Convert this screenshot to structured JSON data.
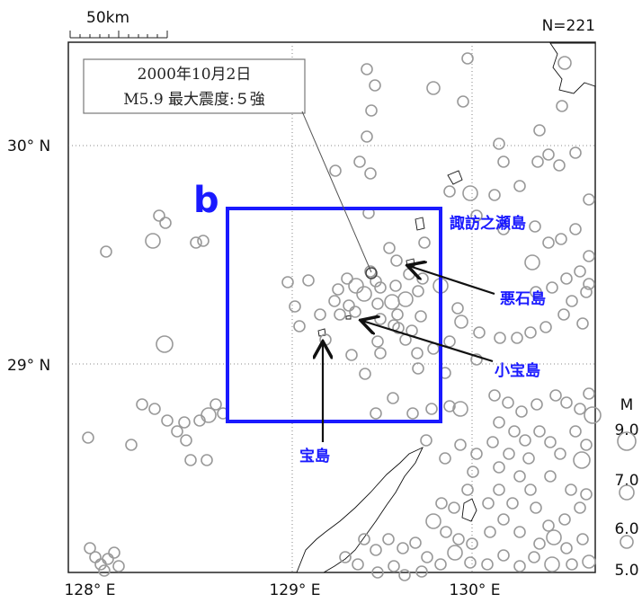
{
  "scale_bar": {
    "label": "50km"
  },
  "count_label": "N=221",
  "callout": {
    "line1": "2000年10月2日",
    "line2": "M5.9 最大震度:５強"
  },
  "panel_label": "b",
  "islands": {
    "suwanose": "諏訪之瀬島",
    "akuseki": "悪石島",
    "kodakara": "小宝島",
    "takara": "宝島"
  },
  "axes": {
    "lat_labels": [
      "30° N",
      "29° N"
    ],
    "lon_labels": [
      "128° E",
      "129° E",
      "130° E"
    ]
  },
  "magnitude_legend": {
    "title": "M",
    "levels": [
      {
        "label": "9.0",
        "magnitude": 9.0
      },
      {
        "label": "7.0",
        "magnitude": 7.0
      },
      {
        "label": "6.0",
        "magnitude": 6.0
      },
      {
        "label": "5.0",
        "magnitude": 5.0
      }
    ]
  },
  "colors": {
    "epicenter": "#999999",
    "region_box": "#1a1aff",
    "label": "#1a1aff",
    "arrow": "#111111"
  }
}
